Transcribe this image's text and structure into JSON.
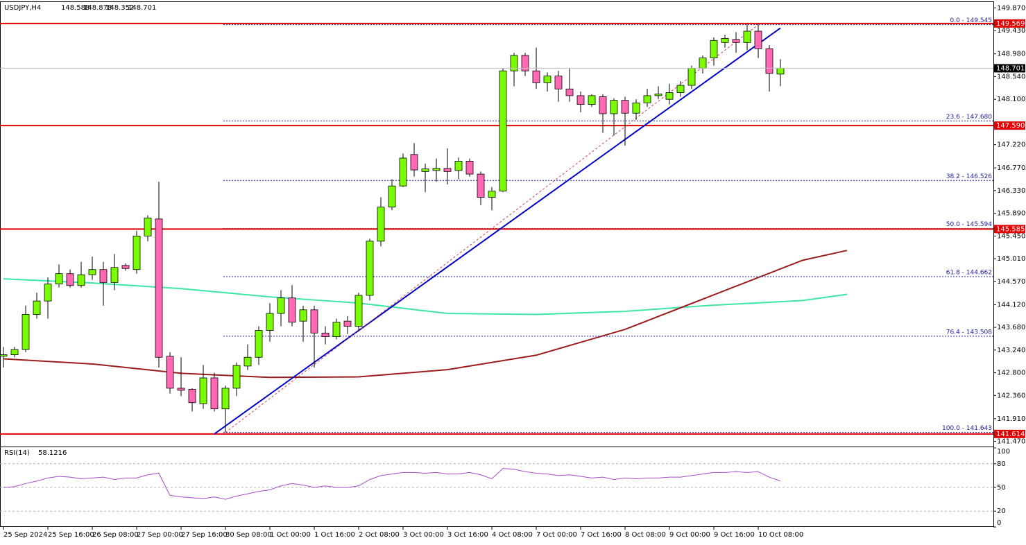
{
  "chart_data": [
    {
      "type": "candlestick",
      "symbol": "USDJPY,H4",
      "categories": [
        "25 Sep 2024",
        null,
        null,
        null,
        "25 Sep 16:00",
        null,
        null,
        null,
        "26 Sep 08:00",
        null,
        null,
        null,
        "27 Sep 00:00",
        null,
        null,
        null,
        "27 Sep 16:00",
        null,
        null,
        null,
        "30 Sep 08:00",
        null,
        null,
        null,
        "1 Oct 00:00",
        null,
        null,
        null,
        "1 Oct 16:00",
        null,
        null,
        null,
        "2 Oct 08:00",
        null,
        null,
        null,
        "3 Oct 00:00",
        null,
        null,
        null,
        "3 Oct 16:00",
        null,
        null,
        null,
        "4 Oct 08:00",
        null,
        null,
        null,
        "7 Oct 00:00",
        null,
        null,
        null,
        "7 Oct 16:00",
        null,
        null,
        null,
        "8 Oct 08:00",
        null,
        null,
        null,
        "9 Oct 00:00",
        null,
        null,
        null,
        "9 Oct 16:00",
        null,
        null,
        null,
        "10 Oct 08:00",
        null,
        null
      ],
      "open": [
        143.12,
        143.15,
        143.25,
        143.93,
        144.19,
        144.52,
        144.72,
        144.49,
        144.7,
        144.8,
        144.55,
        144.88,
        144.8,
        145.45,
        145.78,
        143.12,
        142.5,
        142.48,
        142.2,
        142.7,
        142.1,
        142.5,
        142.93,
        143.1,
        143.62,
        143.95,
        144.25,
        143.8,
        144.02,
        143.57,
        143.5,
        143.8,
        143.7,
        144.3,
        145.35,
        146.01,
        146.42,
        147.03,
        146.7,
        146.72,
        146.76,
        146.72,
        146.9,
        146.65,
        146.2,
        146.32,
        148.65,
        148.95,
        148.65,
        148.42,
        148.55,
        148.3,
        148.17,
        148.0,
        148.15,
        147.82,
        148.08,
        147.83,
        148.03,
        148.17,
        148.1,
        148.23,
        148.37,
        148.7,
        148.9,
        149.2,
        149.26,
        149.2,
        149.42,
        149.08,
        148.588
      ],
      "high": [
        143.3,
        143.3,
        144.1,
        144.35,
        144.65,
        144.9,
        144.8,
        144.95,
        145.05,
        144.95,
        145.1,
        144.92,
        145.55,
        145.85,
        146.5,
        143.2,
        143.1,
        142.5,
        142.95,
        142.8,
        142.55,
        143.0,
        143.35,
        143.7,
        144.15,
        144.4,
        144.5,
        144.1,
        144.1,
        143.7,
        143.85,
        143.9,
        144.35,
        145.4,
        146.2,
        146.55,
        147.05,
        147.25,
        146.85,
        146.95,
        147.15,
        146.97,
        146.95,
        146.7,
        146.4,
        148.7,
        149.0,
        149.0,
        149.1,
        148.62,
        148.65,
        148.7,
        148.25,
        148.2,
        148.2,
        148.12,
        148.15,
        148.1,
        148.3,
        148.35,
        148.4,
        148.45,
        148.75,
        148.95,
        149.3,
        149.35,
        149.4,
        149.55,
        149.55,
        149.15,
        148.878
      ],
      "low": [
        142.9,
        143.1,
        143.2,
        143.85,
        143.85,
        144.45,
        144.45,
        144.45,
        144.6,
        144.1,
        144.4,
        144.78,
        144.72,
        145.35,
        142.9,
        142.4,
        142.35,
        142.05,
        142.1,
        142.05,
        141.65,
        142.35,
        142.85,
        142.95,
        143.4,
        143.7,
        143.7,
        143.4,
        142.9,
        143.35,
        143.45,
        143.55,
        143.6,
        144.2,
        145.25,
        145.95,
        146.4,
        146.6,
        146.3,
        146.5,
        146.45,
        146.55,
        146.6,
        146.05,
        145.95,
        146.3,
        148.35,
        148.55,
        148.3,
        148.25,
        148.05,
        148.05,
        147.85,
        147.95,
        147.45,
        147.4,
        147.2,
        147.7,
        147.95,
        148.1,
        148.0,
        148.15,
        148.3,
        148.6,
        148.75,
        149.1,
        149.0,
        149.05,
        148.9,
        148.25,
        148.352
      ],
      "close": [
        143.15,
        143.25,
        143.93,
        144.19,
        144.52,
        144.72,
        144.49,
        144.7,
        144.8,
        144.55,
        144.84,
        144.82,
        145.45,
        145.8,
        143.1,
        142.5,
        142.46,
        142.22,
        142.7,
        142.1,
        142.5,
        142.94,
        143.1,
        143.62,
        143.95,
        144.25,
        143.78,
        144.02,
        143.57,
        143.5,
        143.78,
        143.7,
        144.3,
        145.35,
        146.01,
        146.42,
        146.96,
        146.73,
        146.75,
        146.76,
        146.7,
        146.9,
        146.65,
        146.2,
        146.32,
        148.65,
        148.95,
        148.65,
        148.42,
        148.55,
        148.3,
        148.17,
        148.0,
        148.17,
        147.82,
        148.08,
        147.83,
        148.03,
        148.17,
        148.2,
        148.23,
        148.37,
        148.7,
        148.9,
        149.24,
        149.28,
        149.2,
        149.42,
        149.08,
        148.6,
        148.701
      ],
      "up_color": "#7cfc00",
      "down_color": "#ff69b4",
      "ylim": [
        141.37,
        149.97
      ],
      "yticks": [
        {
          "value": 149.87,
          "label": "149.870"
        },
        {
          "value": 149.43,
          "label": "149.430"
        },
        {
          "value": 148.98,
          "label": "148.980"
        },
        {
          "value": 148.54,
          "label": "148.540"
        },
        {
          "value": 148.1,
          "label": "148.100"
        },
        {
          "value": 147.22,
          "label": "147.220"
        },
        {
          "value": 146.77,
          "label": "146.770"
        },
        {
          "value": 146.33,
          "label": "146.330"
        },
        {
          "value": 145.89,
          "label": "145.890"
        },
        {
          "value": 145.45,
          "label": "145.450"
        },
        {
          "value": 145.01,
          "label": "145.010"
        },
        {
          "value": 144.57,
          "label": "144.570"
        },
        {
          "value": 144.12,
          "label": "144.120"
        },
        {
          "value": 143.68,
          "label": "143.680"
        },
        {
          "value": 143.24,
          "label": "143.240"
        },
        {
          "value": 142.8,
          "label": "142.800"
        },
        {
          "value": 142.36,
          "label": "142.360"
        },
        {
          "value": 141.91,
          "label": "141.910"
        },
        {
          "value": 141.47,
          "label": "141.470"
        }
      ],
      "overlays": [
        {
          "color": "#3ee6a4",
          "x": [
            0,
            8,
            16,
            24,
            32,
            40,
            48,
            56,
            64,
            72,
            76
          ],
          "values": [
            144.62,
            144.54,
            144.43,
            144.27,
            144.15,
            143.95,
            143.93,
            143.99,
            144.11,
            144.2,
            144.32
          ]
        },
        {
          "color": "#9b1c1c",
          "x": [
            0,
            8,
            16,
            24,
            32,
            40,
            48,
            56,
            64,
            72,
            76
          ],
          "values": [
            143.07,
            142.97,
            142.79,
            142.71,
            142.72,
            142.86,
            143.14,
            143.64,
            144.31,
            144.98,
            145.17
          ]
        }
      ],
      "trendlines": [
        {
          "color": "#0000c8",
          "x": [
            19,
            70
          ],
          "values": [
            141.614,
            149.48
          ]
        },
        {
          "color": "#d04040",
          "dashed": true,
          "x": [
            20,
            68
          ],
          "values": [
            141.643,
            149.545
          ]
        }
      ],
      "hlines": [
        {
          "value": 149.569,
          "color": "#e00000"
        },
        {
          "value": 147.59,
          "label": "147.590",
          "color": "#e00000"
        },
        {
          "value": 145.585,
          "color": "#e00000"
        },
        {
          "value": 141.614,
          "color": "#e00000"
        }
      ],
      "fib": [
        {
          "label": "0.0 - 149.545",
          "value": 149.545
        },
        {
          "label": "23.6 - 147.680",
          "value": 147.68
        },
        {
          "label": "38.2 - 146.526",
          "value": 146.526
        },
        {
          "label": "50.0 - 145.594",
          "value": 145.594
        },
        {
          "label": "61.8 - 144.662",
          "value": 144.662
        },
        {
          "label": "76.4 - 143.508",
          "value": 143.508
        },
        {
          "label": "100.0 - 141.643",
          "value": 141.643
        }
      ],
      "fib_color": "#1c1ca0"
    },
    {
      "type": "line",
      "name": "RSI(14)",
      "color": "#a64ac9",
      "values": [
        50,
        51,
        55,
        58,
        62,
        64,
        63,
        61,
        62,
        63,
        60,
        62,
        62,
        66,
        68,
        40,
        38,
        37,
        36,
        38,
        35,
        39,
        42,
        45,
        47,
        52,
        55,
        53,
        50,
        52,
        50,
        50,
        52,
        60,
        65,
        67,
        69,
        69,
        68,
        69,
        67,
        67,
        69,
        66,
        61,
        74,
        73,
        70,
        68,
        67,
        65,
        66,
        64,
        62,
        63,
        60,
        62,
        61,
        62,
        62,
        63,
        63,
        65,
        67,
        69,
        69,
        70,
        69,
        70,
        63,
        58.1216
      ],
      "ylim": [
        0,
        100
      ],
      "yticks": [
        100,
        80,
        50,
        20,
        0
      ],
      "levels": [
        80,
        50,
        20
      ]
    }
  ]
}
